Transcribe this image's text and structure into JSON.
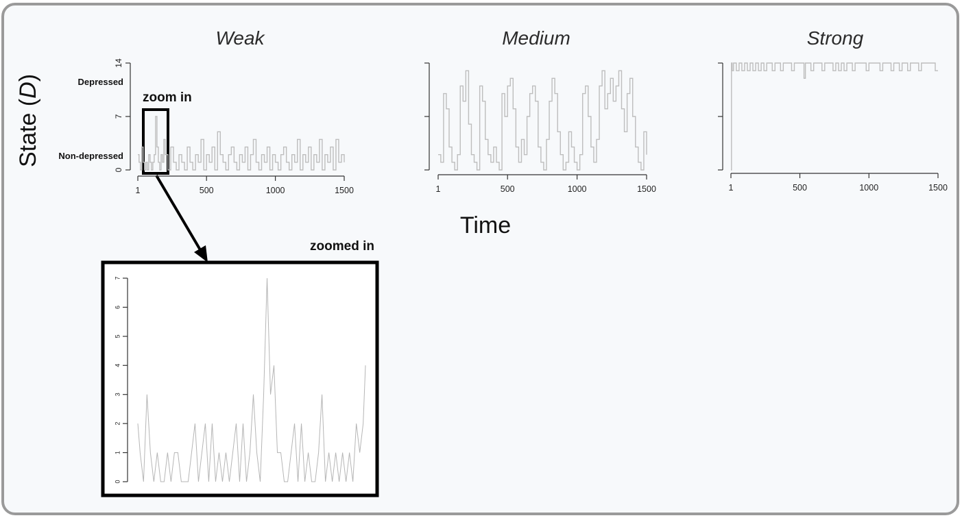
{
  "figure": {
    "x_axis_label": "Time",
    "y_axis_label_main": "State (",
    "y_axis_label_var": "D",
    "y_axis_label_close": ")",
    "annotation_zoom_in": "zoom in",
    "annotation_zoomed_in": "zoomed in",
    "colors": {
      "series": "#bdbdbd",
      "frame": "#9a9a9a",
      "background": "#f7f9fb",
      "box": "#000000"
    }
  },
  "chart_data": [
    {
      "type": "line",
      "title": "Weak",
      "xlabel": "Time",
      "ylabel": "State (D)",
      "xlim": [
        1,
        1500
      ],
      "ylim": [
        0,
        14
      ],
      "x_ticks": [
        "1",
        "500",
        "1000",
        "1500"
      ],
      "y_ticks": [
        "0",
        "7",
        "14"
      ],
      "y_category_labels": [
        "Non-depressed",
        "Depressed"
      ],
      "series": [
        {
          "x": [
            1,
            10,
            20,
            30,
            40,
            50,
            60,
            70,
            80,
            90,
            100,
            110,
            120,
            130,
            140,
            150,
            160,
            170,
            180,
            190,
            200,
            220,
            240,
            260,
            280,
            300,
            320,
            340,
            360,
            380,
            400,
            420,
            440,
            460,
            480,
            500,
            520,
            540,
            560,
            580,
            600,
            620,
            640,
            660,
            680,
            700,
            720,
            740,
            760,
            780,
            800,
            820,
            840,
            860,
            880,
            900,
            920,
            940,
            960,
            980,
            1000,
            1020,
            1040,
            1060,
            1080,
            1100,
            1120,
            1140,
            1160,
            1180,
            1200,
            1220,
            1240,
            1260,
            1280,
            1300,
            1320,
            1340,
            1360,
            1380,
            1400,
            1420,
            1440,
            1460,
            1480,
            1500
          ],
          "y": [
            2,
            1,
            0,
            3,
            1,
            0,
            1,
            0,
            2,
            1,
            0,
            1,
            2,
            7,
            3,
            1,
            0,
            2,
            1,
            4,
            2,
            0,
            3,
            1,
            0,
            2,
            1,
            0,
            3,
            1,
            0,
            2,
            1,
            4,
            0,
            2,
            1,
            3,
            0,
            5,
            2,
            1,
            0,
            2,
            3,
            1,
            0,
            2,
            1,
            3,
            0,
            2,
            4,
            1,
            0,
            2,
            1,
            3,
            0,
            2,
            1,
            0,
            2,
            3,
            1,
            0,
            2,
            1,
            4,
            0,
            2,
            1,
            3,
            0,
            2,
            1,
            4,
            0,
            2,
            1,
            3,
            0,
            4,
            1,
            2,
            1
          ]
        }
      ]
    },
    {
      "type": "line",
      "title": "Medium",
      "xlabel": "Time",
      "ylabel": "State (D)",
      "xlim": [
        1,
        1500
      ],
      "ylim": [
        0,
        14
      ],
      "x_ticks": [
        "1",
        "500",
        "1000",
        "1500"
      ],
      "y_ticks": [],
      "series": [
        {
          "x": [
            1,
            20,
            40,
            60,
            80,
            100,
            120,
            140,
            160,
            180,
            200,
            220,
            240,
            260,
            280,
            300,
            320,
            340,
            360,
            380,
            400,
            420,
            440,
            460,
            480,
            500,
            520,
            540,
            560,
            580,
            600,
            620,
            640,
            660,
            680,
            700,
            720,
            740,
            760,
            780,
            800,
            820,
            840,
            860,
            880,
            900,
            920,
            940,
            960,
            980,
            1000,
            1020,
            1040,
            1060,
            1080,
            1100,
            1120,
            1140,
            1160,
            1180,
            1200,
            1220,
            1240,
            1260,
            1280,
            1300,
            1320,
            1340,
            1360,
            1380,
            1400,
            1420,
            1440,
            1460,
            1480,
            1500
          ],
          "y": [
            2,
            1,
            10,
            8,
            3,
            1,
            0,
            2,
            11,
            9,
            13,
            6,
            2,
            1,
            0,
            11,
            9,
            4,
            2,
            1,
            3,
            1,
            0,
            10,
            7,
            11,
            12,
            8,
            3,
            1,
            4,
            2,
            7,
            10,
            11,
            9,
            3,
            1,
            0,
            4,
            9,
            12,
            10,
            5,
            2,
            0,
            1,
            5,
            3,
            1,
            0,
            2,
            10,
            11,
            7,
            3,
            1,
            4,
            11,
            13,
            8,
            10,
            12,
            9,
            11,
            13,
            8,
            5,
            10,
            12,
            7,
            3,
            1,
            0,
            5,
            2
          ]
        }
      ]
    },
    {
      "type": "line",
      "title": "Strong",
      "xlabel": "Time",
      "ylabel": "State (D)",
      "xlim": [
        1,
        1500
      ],
      "ylim": [
        0,
        14
      ],
      "x_ticks": [
        "1",
        "500",
        "1000",
        "1500"
      ],
      "y_ticks": [],
      "series": [
        {
          "x": [
            1,
            5,
            10,
            20,
            40,
            60,
            80,
            100,
            120,
            140,
            160,
            180,
            200,
            220,
            240,
            260,
            280,
            300,
            320,
            340,
            360,
            380,
            400,
            420,
            440,
            460,
            480,
            500,
            520,
            530,
            540,
            560,
            580,
            600,
            620,
            640,
            660,
            680,
            700,
            720,
            740,
            760,
            780,
            800,
            820,
            840,
            860,
            880,
            900,
            920,
            940,
            960,
            980,
            1000,
            1020,
            1040,
            1060,
            1080,
            1100,
            1120,
            1140,
            1160,
            1180,
            1200,
            1220,
            1240,
            1260,
            1280,
            1300,
            1320,
            1340,
            1360,
            1380,
            1400,
            1420,
            1440,
            1460,
            1480,
            1500
          ],
          "y": [
            0,
            14,
            13,
            14,
            13,
            14,
            13,
            14,
            13,
            14,
            13,
            14,
            13,
            14,
            13,
            14,
            14,
            13,
            14,
            14,
            13,
            14,
            14,
            14,
            13,
            14,
            14,
            14,
            14,
            12,
            14,
            14,
            13,
            14,
            14,
            14,
            13,
            14,
            14,
            14,
            13,
            14,
            13,
            14,
            13,
            14,
            14,
            13,
            14,
            14,
            14,
            14,
            13,
            14,
            14,
            14,
            14,
            13,
            14,
            14,
            14,
            13,
            14,
            14,
            13,
            14,
            14,
            13,
            14,
            14,
            14,
            13,
            14,
            14,
            14,
            14,
            14,
            13,
            13
          ]
        }
      ]
    },
    {
      "type": "line",
      "title": "",
      "xlabel": "",
      "ylabel": "",
      "xlim": [
        1,
        200
      ],
      "ylim": [
        0,
        7
      ],
      "x_ticks": [],
      "y_ticks": [
        "0",
        "1",
        "2",
        "3",
        "4",
        "5",
        "6",
        "7"
      ],
      "series": [
        {
          "x": [
            1,
            3,
            6,
            9,
            12,
            15,
            18,
            21,
            24,
            27,
            30,
            33,
            36,
            39,
            42,
            45,
            48,
            51,
            54,
            57,
            60,
            63,
            66,
            69,
            72,
            75,
            78,
            81,
            84,
            87,
            90,
            93,
            96,
            99,
            102,
            105,
            108,
            111,
            114,
            117,
            120,
            123,
            126,
            129,
            132,
            135,
            138,
            141,
            144,
            147,
            150,
            153,
            156,
            159,
            162,
            165,
            168,
            171,
            174,
            177,
            180,
            183,
            186,
            189,
            192,
            195,
            198,
            200
          ],
          "y": [
            2,
            1,
            0,
            3,
            1,
            0,
            1,
            0,
            0,
            1,
            0,
            1,
            1,
            0,
            0,
            0,
            1,
            2,
            0,
            1,
            2,
            0,
            2,
            0,
            1,
            0,
            1,
            0,
            1,
            2,
            0,
            2,
            0,
            1,
            3,
            1,
            0,
            3,
            7,
            3,
            4,
            1,
            1,
            0,
            0,
            1,
            2,
            0,
            2,
            0,
            1,
            0,
            0,
            1,
            3,
            0,
            1,
            0,
            1,
            0,
            1,
            0,
            1,
            0,
            2,
            1,
            2,
            4
          ]
        }
      ]
    }
  ]
}
